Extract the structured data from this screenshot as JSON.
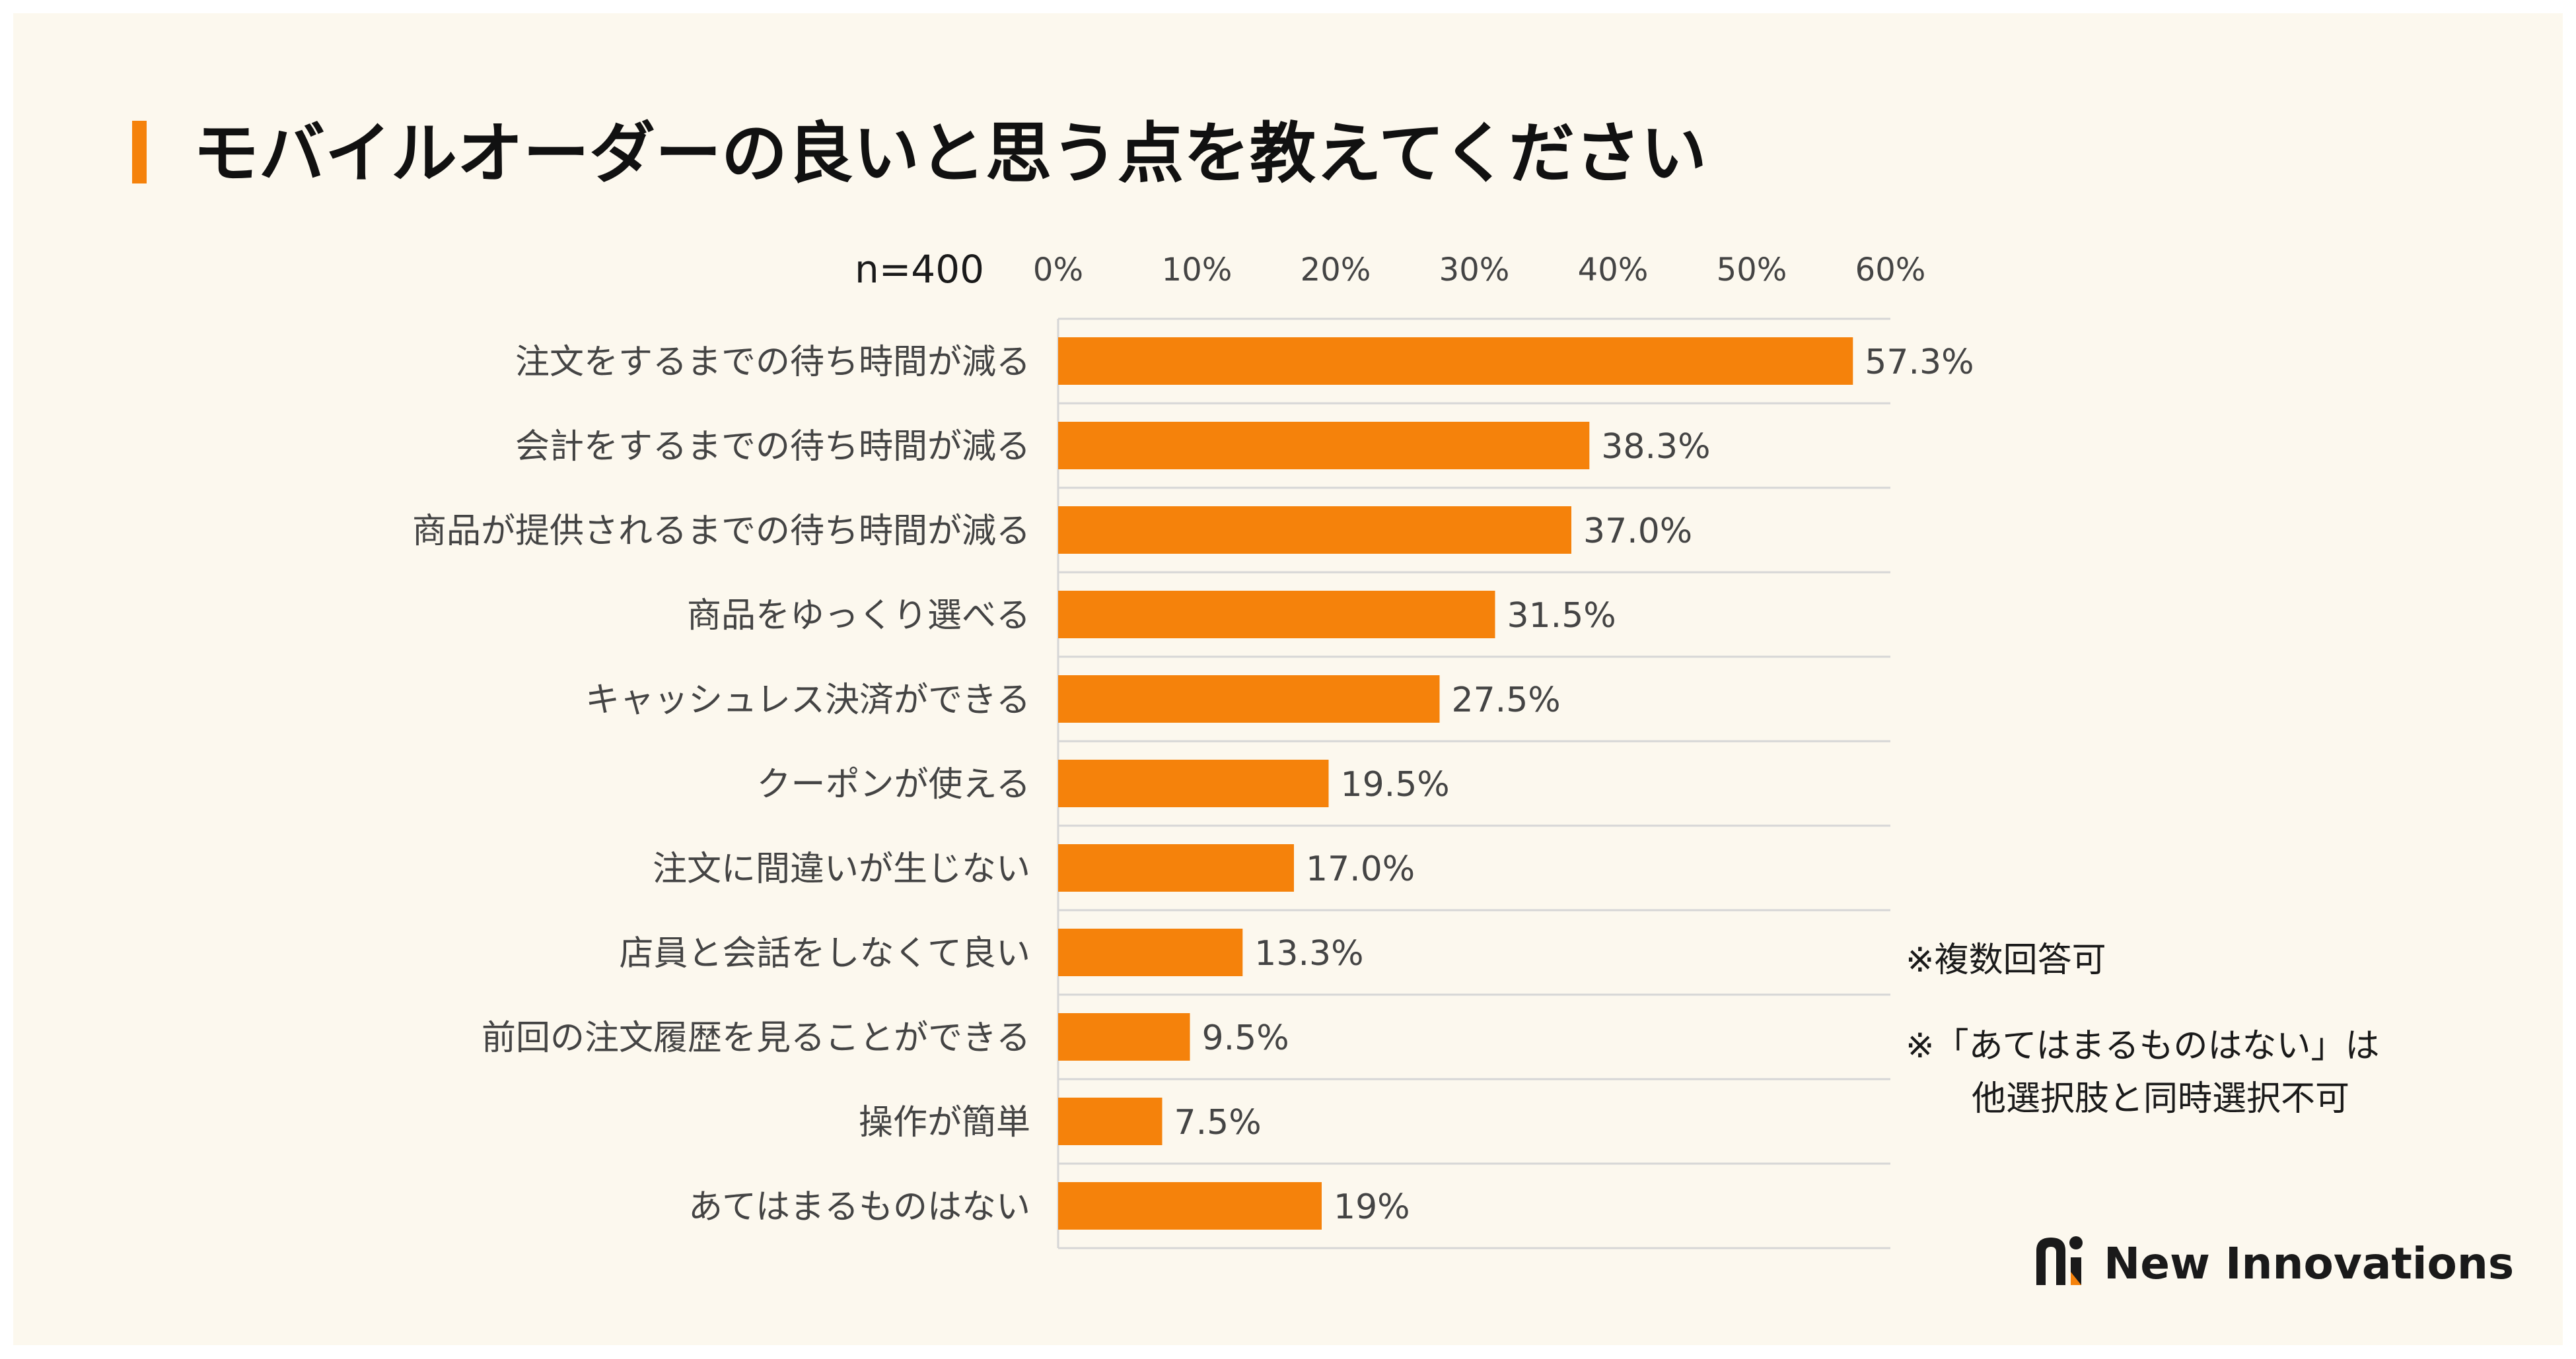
{
  "header": {
    "title": "モバイルオーダーの良いと思う点を教えてください"
  },
  "colors": {
    "bar": "#f5820b",
    "accent": "#f5820b",
    "background": "#fcf8ee",
    "grid": "#d6d6d6"
  },
  "notes": {
    "multi_answer": "※複数回答可",
    "exclusive_line1": "※「あてはまるものはない」は",
    "exclusive_line2": "他選択肢と同時選択不可"
  },
  "brand": {
    "name": "New Innovations",
    "icon": "new-innovations-logo"
  },
  "chart_data": {
    "type": "bar",
    "orientation": "horizontal",
    "sample_label": "n=400",
    "categories": [
      "注文をするまでの待ち時間が減る",
      "会計をするまでの待ち時間が減る",
      "商品が提供されるまでの待ち時間が減る",
      "商品をゆっくり選べる",
      "キャッシュレス決済ができる",
      "クーポンが使える",
      "注文に間違いが生じない",
      "店員と会話をしなくて良い",
      "前回の注文履歴を見ることができる",
      "操作が簡単",
      "あてはまるものはない"
    ],
    "values": [
      57.3,
      38.3,
      37.0,
      31.5,
      27.5,
      19.5,
      17.0,
      13.3,
      9.5,
      7.5,
      19
    ],
    "value_labels": [
      "57.3%",
      "38.3%",
      "37.0%",
      "31.5%",
      "27.5%",
      "19.5%",
      "17.0%",
      "13.3%",
      "9.5%",
      "7.5%",
      "19%"
    ],
    "xlim": [
      0,
      60
    ],
    "x_ticks": [
      0,
      10,
      20,
      30,
      40,
      50,
      60
    ],
    "x_tick_labels": [
      "0%",
      "10%",
      "20%",
      "30%",
      "40%",
      "50%",
      "60%"
    ],
    "axis_position": "top",
    "grid": "horizontal-row-separators",
    "legend": "none"
  }
}
